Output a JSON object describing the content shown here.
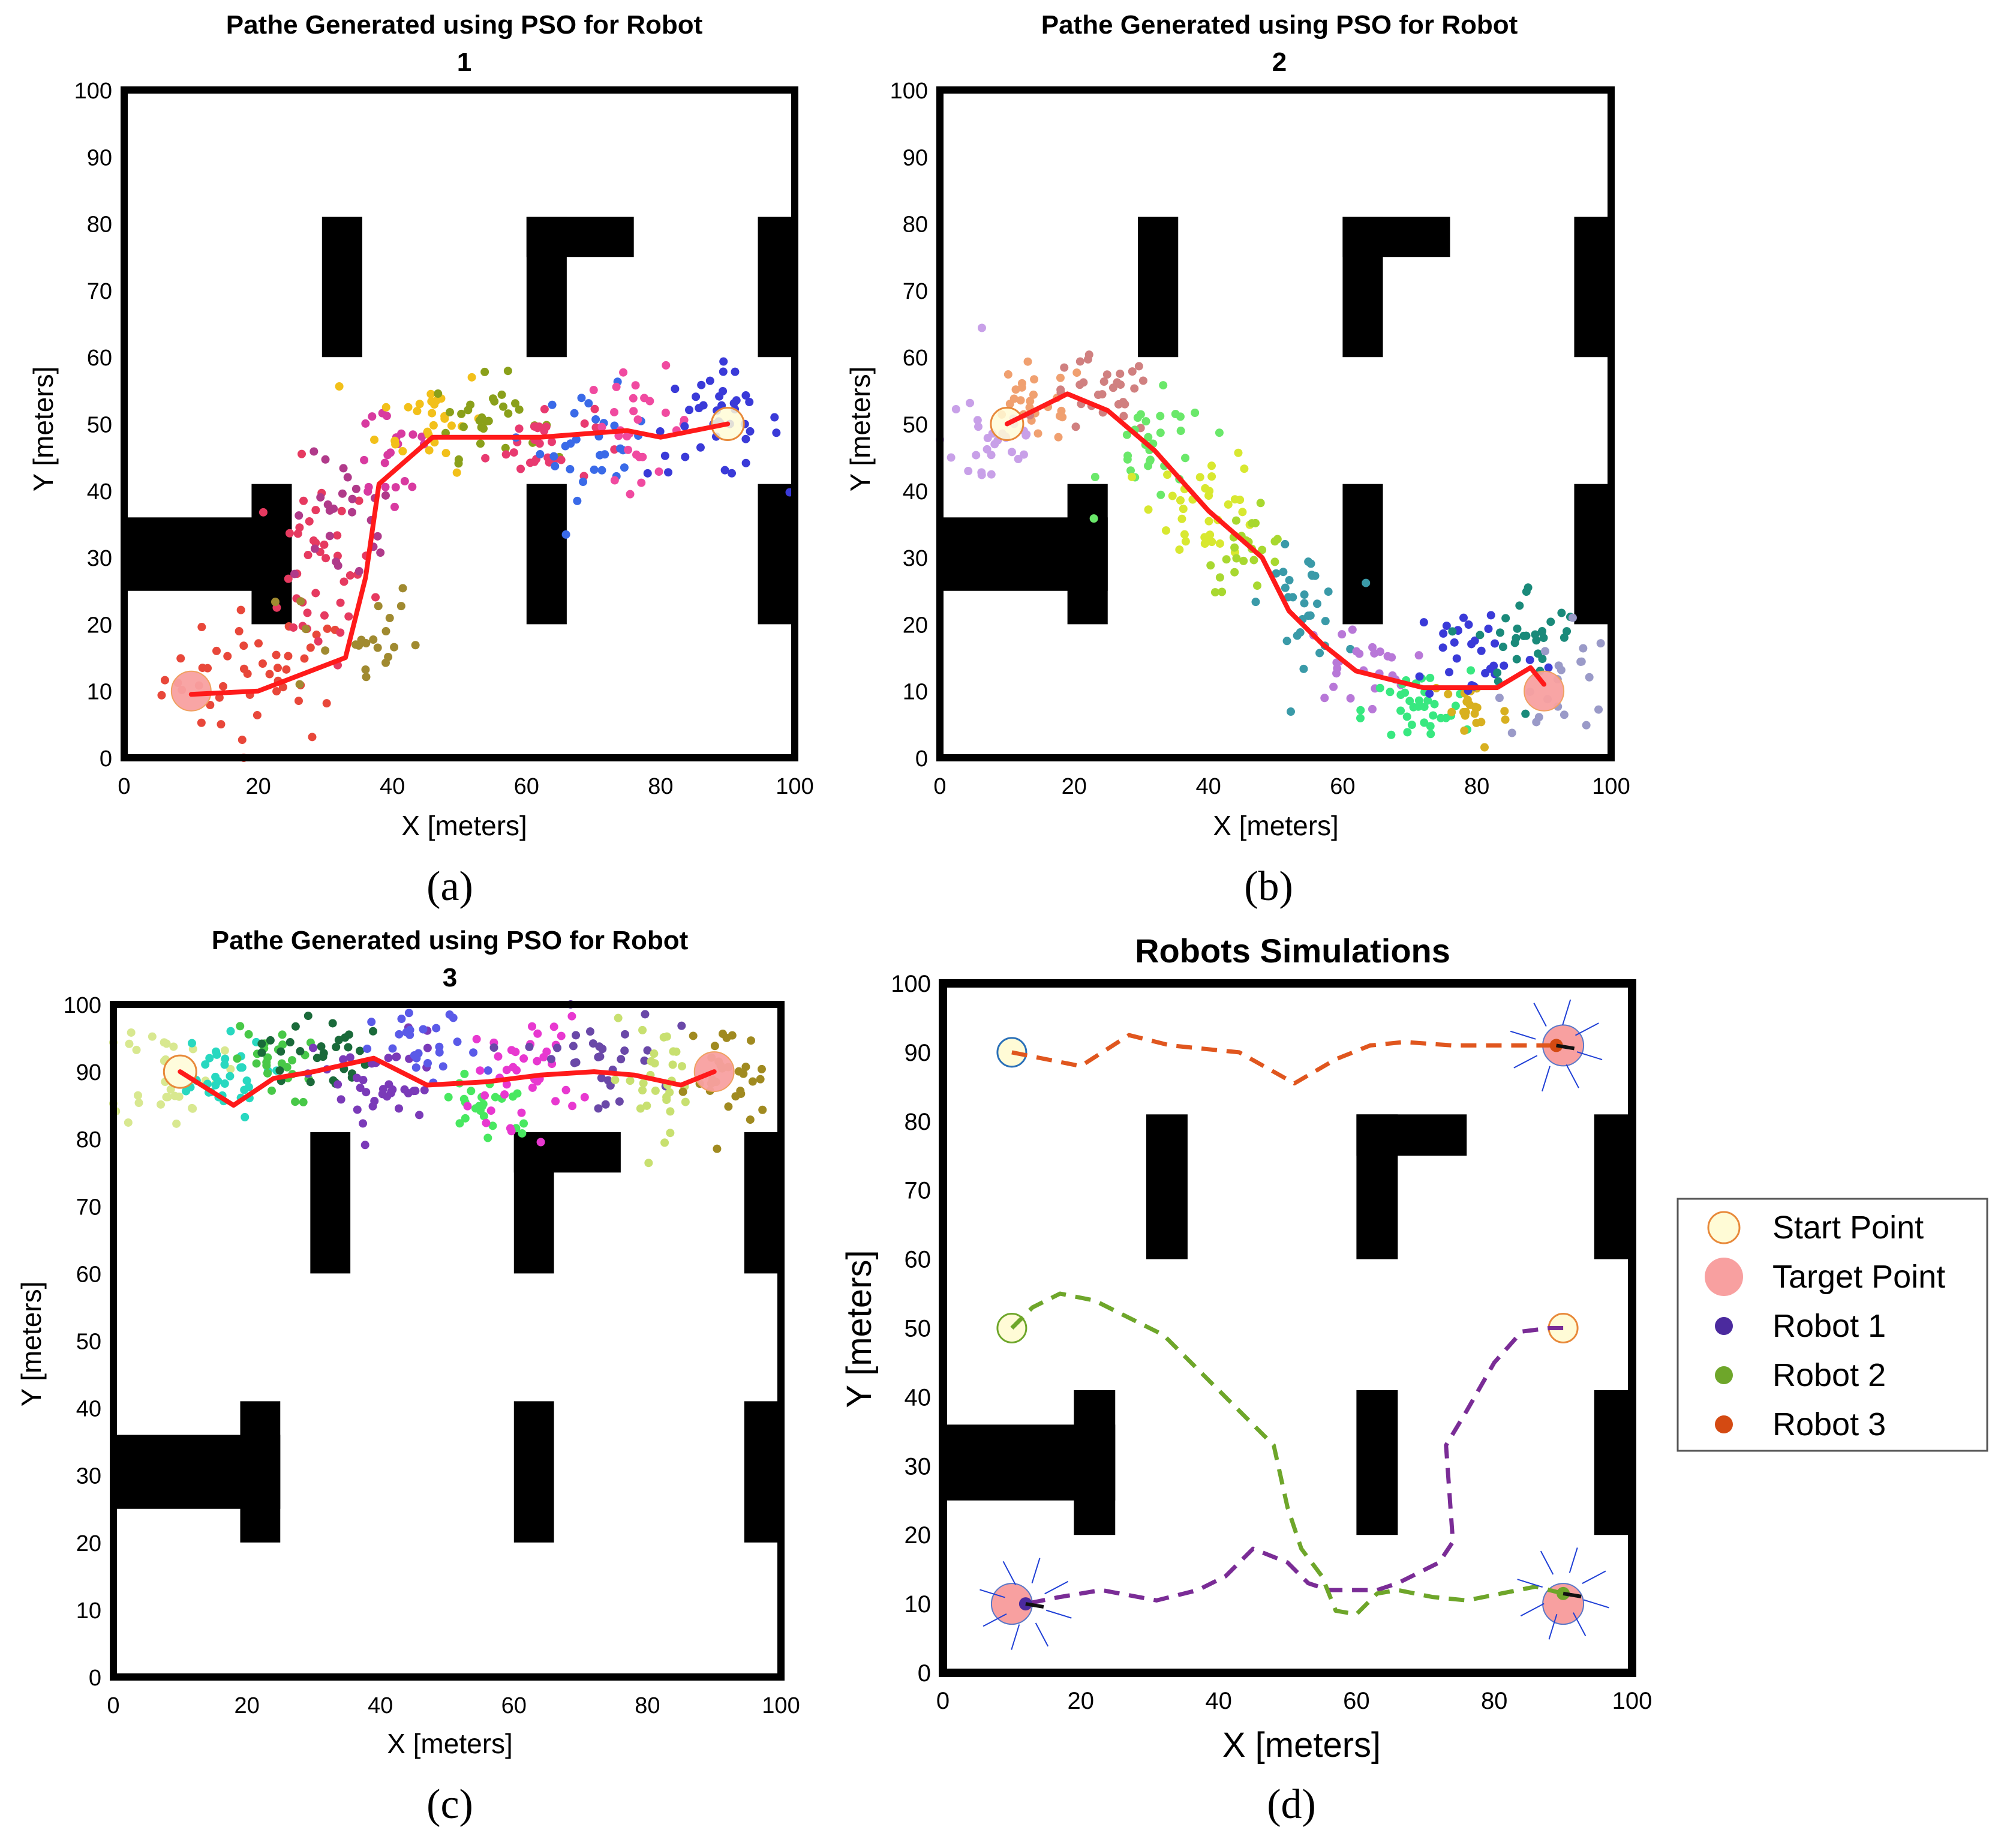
{
  "colors": {
    "path": "#ff1a1a",
    "obstacle": "#000000",
    "start_fill": "#fffbd6",
    "start_edge": "#e8893a",
    "target_fill": "#f8a0a0",
    "robot1": "#7a2c96",
    "robot2": "#6ea62a",
    "robot3": "#e0561e",
    "robot1_marker": "#4b2a9e",
    "robot2_marker": "#6ea62a",
    "robot3_marker": "#d44a12",
    "sensor": "#1f3fd6"
  },
  "chart_data": [
    {
      "id": "a",
      "type": "scatter",
      "title_line1": "Pathe Generated using PSO for Robot",
      "title_line2": "1",
      "xlabel": "X [meters]",
      "ylabel": "Y [meters]",
      "xlim": [
        0,
        100
      ],
      "ylim": [
        0,
        100
      ],
      "xticks": [
        "0",
        "20",
        "40",
        "60",
        "80",
        "100"
      ],
      "yticks": [
        "0",
        "10",
        "20",
        "30",
        "40",
        "50",
        "60",
        "70",
        "80",
        "90",
        "100"
      ],
      "caption": "(a)",
      "start": [
        90,
        50
      ],
      "target": [
        10,
        10
      ],
      "path": [
        [
          10,
          9.5
        ],
        [
          20,
          10
        ],
        [
          33,
          15
        ],
        [
          36,
          27
        ],
        [
          38,
          41
        ],
        [
          46,
          48
        ],
        [
          62,
          48
        ],
        [
          75,
          49
        ],
        [
          80,
          48
        ],
        [
          90,
          50
        ]
      ],
      "particle_clouds": [
        {
          "color": "#e8473a",
          "cx": 20,
          "cy": 12,
          "sx": 7,
          "sy": 5,
          "n": 45
        },
        {
          "color": "#e63a60",
          "cx": 29,
          "cy": 28,
          "sx": 4,
          "sy": 7,
          "n": 40
        },
        {
          "color": "#b03a8a",
          "cx": 33,
          "cy": 35,
          "sx": 4,
          "sy": 5,
          "n": 25
        },
        {
          "color": "#a08a30",
          "cx": 34,
          "cy": 18,
          "sx": 5,
          "sy": 5,
          "n": 22
        },
        {
          "color": "#d83aa0",
          "cx": 40,
          "cy": 46,
          "sx": 4,
          "sy": 5,
          "n": 22
        },
        {
          "color": "#f2c01a",
          "cx": 46,
          "cy": 51,
          "sx": 4,
          "sy": 4,
          "n": 28
        },
        {
          "color": "#8aa01a",
          "cx": 54,
          "cy": 51,
          "sx": 4,
          "sy": 3,
          "n": 30
        },
        {
          "color": "#e83a70",
          "cx": 62,
          "cy": 47,
          "sx": 4,
          "sy": 3,
          "n": 28
        },
        {
          "color": "#3a6ae8",
          "cx": 70,
          "cy": 47,
          "sx": 4,
          "sy": 4,
          "n": 30
        },
        {
          "color": "#f04aa0",
          "cx": 77,
          "cy": 50,
          "sx": 4,
          "sy": 4,
          "n": 28
        },
        {
          "color": "#3a3ad8",
          "cx": 88,
          "cy": 50,
          "sx": 5,
          "sy": 4,
          "n": 40
        }
      ]
    },
    {
      "id": "b",
      "type": "scatter",
      "title_line1": "Pathe Generated using PSO for Robot",
      "title_line2": "2",
      "xlabel": "X [meters]",
      "ylabel": "Y [meters]",
      "xlim": [
        0,
        100
      ],
      "ylim": [
        0,
        100
      ],
      "xticks": [
        "0",
        "20",
        "40",
        "60",
        "80",
        "100"
      ],
      "yticks": [
        "0",
        "10",
        "20",
        "30",
        "40",
        "50",
        "60",
        "70",
        "80",
        "90",
        "100"
      ],
      "caption": "(b)",
      "start": [
        10,
        50
      ],
      "target": [
        90,
        10
      ],
      "path": [
        [
          10,
          50
        ],
        [
          19,
          54.5
        ],
        [
          25,
          52
        ],
        [
          32,
          46
        ],
        [
          40,
          37
        ],
        [
          48,
          30
        ],
        [
          52,
          22
        ],
        [
          57,
          17
        ],
        [
          62,
          13
        ],
        [
          72,
          10.5
        ],
        [
          83,
          10.5
        ],
        [
          88,
          13.5
        ],
        [
          90,
          11
        ]
      ],
      "particle_clouds": [
        {
          "color": "#c8a0e8",
          "cx": 8,
          "cy": 48,
          "sx": 4,
          "sy": 5,
          "n": 30
        },
        {
          "color": "#f0a070",
          "cx": 14,
          "cy": 53,
          "sx": 4,
          "sy": 3,
          "n": 25
        },
        {
          "color": "#d08080",
          "cx": 24,
          "cy": 54,
          "sx": 4,
          "sy": 3,
          "n": 30
        },
        {
          "color": "#6ae86a",
          "cx": 32,
          "cy": 46,
          "sx": 4,
          "sy": 4,
          "n": 30
        },
        {
          "color": "#d8e830",
          "cx": 40,
          "cy": 38,
          "sx": 4,
          "sy": 4,
          "n": 35
        },
        {
          "color": "#a8d830",
          "cx": 46,
          "cy": 31,
          "sx": 3,
          "sy": 3,
          "n": 25
        },
        {
          "color": "#3a9aa8",
          "cx": 54,
          "cy": 23,
          "sx": 3,
          "sy": 4,
          "n": 30
        },
        {
          "color": "#b878d8",
          "cx": 62,
          "cy": 14,
          "sx": 4,
          "sy": 3,
          "n": 25
        },
        {
          "color": "#38e880",
          "cx": 71,
          "cy": 7,
          "sx": 4,
          "sy": 3,
          "n": 35
        },
        {
          "color": "#d8b020",
          "cx": 79,
          "cy": 7,
          "sx": 3,
          "sy": 3,
          "n": 22
        },
        {
          "color": "#3a3ad8",
          "cx": 80,
          "cy": 16,
          "sx": 5,
          "sy": 4,
          "n": 30
        },
        {
          "color": "#1a8a7a",
          "cx": 88,
          "cy": 18,
          "sx": 4,
          "sy": 4,
          "n": 30
        },
        {
          "color": "#9a9ac8",
          "cx": 92,
          "cy": 12,
          "sx": 4,
          "sy": 5,
          "n": 20
        }
      ]
    },
    {
      "id": "c",
      "type": "scatter",
      "title_line1": "Pathe Generated using PSO for Robot",
      "title_line2": "3",
      "xlabel": "X [meters]",
      "ylabel": "Y [meters]",
      "xlim": [
        0,
        100
      ],
      "ylim": [
        0,
        100
      ],
      "xticks": [
        "0",
        "20",
        "40",
        "60",
        "80",
        "100"
      ],
      "yticks": [
        "0",
        "10",
        "20",
        "30",
        "40",
        "50",
        "60",
        "70",
        "80",
        "90",
        "100"
      ],
      "caption": "(c)",
      "start": [
        10,
        90
      ],
      "target": [
        90,
        90
      ],
      "path": [
        [
          10,
          90
        ],
        [
          18,
          85
        ],
        [
          24,
          89
        ],
        [
          30,
          90
        ],
        [
          39,
          92
        ],
        [
          47,
          88
        ],
        [
          56,
          88.5
        ],
        [
          64,
          89.5
        ],
        [
          72,
          90
        ],
        [
          78,
          89.5
        ],
        [
          85,
          88
        ],
        [
          90,
          90
        ]
      ],
      "particle_clouds": [
        {
          "color": "#d8e890",
          "cx": 8,
          "cy": 90,
          "sx": 4,
          "sy": 4,
          "n": 30
        },
        {
          "color": "#28d8c0",
          "cx": 15,
          "cy": 89,
          "sx": 4,
          "sy": 3,
          "n": 35
        },
        {
          "color": "#48c848",
          "cx": 24,
          "cy": 91,
          "sx": 3,
          "sy": 3,
          "n": 25
        },
        {
          "color": "#1a6a3a",
          "cx": 30,
          "cy": 93,
          "sx": 4,
          "sy": 3,
          "n": 30
        },
        {
          "color": "#7a3ab8",
          "cx": 40,
          "cy": 88,
          "sx": 5,
          "sy": 4,
          "n": 40
        },
        {
          "color": "#5a5ae8",
          "cx": 47,
          "cy": 93,
          "sx": 4,
          "sy": 3,
          "n": 25
        },
        {
          "color": "#48e860",
          "cx": 56,
          "cy": 85,
          "sx": 4,
          "sy": 3,
          "n": 25
        },
        {
          "color": "#e838d0",
          "cx": 62,
          "cy": 90,
          "sx": 4,
          "sy": 4,
          "n": 40
        },
        {
          "color": "#6a48a8",
          "cx": 72,
          "cy": 92,
          "sx": 5,
          "sy": 4,
          "n": 30
        },
        {
          "color": "#c8e070",
          "cx": 82,
          "cy": 89,
          "sx": 4,
          "sy": 4,
          "n": 30
        },
        {
          "color": "#a08a20",
          "cx": 92,
          "cy": 89,
          "sx": 3,
          "sy": 4,
          "n": 30
        }
      ]
    },
    {
      "id": "d",
      "type": "line",
      "title": "Robots Simulations",
      "xlabel": "X [meters]",
      "ylabel": "Y [meters]",
      "xlim": [
        0,
        100
      ],
      "ylim": [
        0,
        100
      ],
      "xticks": [
        "0",
        "20",
        "40",
        "60",
        "80",
        "100"
      ],
      "yticks": [
        "0",
        "10",
        "20",
        "30",
        "40",
        "50",
        "60",
        "70",
        "80",
        "90",
        "100"
      ],
      "caption": "(d)",
      "starts": [
        [
          10,
          90
        ],
        [
          10,
          50
        ],
        [
          90,
          50
        ]
      ],
      "targets": [
        [
          90,
          91
        ],
        [
          10,
          10
        ],
        [
          90,
          10
        ]
      ],
      "series": [
        {
          "name": "Robot 1",
          "color_key": "robot1",
          "path": [
            [
              90,
              50
            ],
            [
              88,
              50
            ],
            [
              84,
              49.5
            ],
            [
              80,
              45
            ],
            [
              76,
              38
            ],
            [
              73,
              33
            ],
            [
              73.5,
              26
            ],
            [
              74,
              19
            ],
            [
              72,
              16
            ],
            [
              70,
              15
            ],
            [
              66,
              13
            ],
            [
              63,
              12
            ],
            [
              59,
              12
            ],
            [
              56,
              12
            ],
            [
              53,
              13
            ],
            [
              50,
              16
            ],
            [
              45,
              18
            ],
            [
              41,
              14
            ],
            [
              37,
              12
            ],
            [
              31,
              10.5
            ],
            [
              23,
              12
            ],
            [
              17,
              11
            ],
            [
              12,
              10
            ]
          ]
        },
        {
          "name": "Robot 2",
          "color_key": "robot2",
          "path": [
            [
              10,
              50
            ],
            [
              13,
              53
            ],
            [
              17,
              55
            ],
            [
              22,
              54
            ],
            [
              32,
              49
            ],
            [
              38,
              43
            ],
            [
              43,
              38
            ],
            [
              48,
              33
            ],
            [
              50,
              24
            ],
            [
              52,
              18
            ],
            [
              55,
              14
            ],
            [
              57,
              9
            ],
            [
              60,
              8.5
            ],
            [
              63,
              11.5
            ],
            [
              66,
              12
            ],
            [
              71,
              11
            ],
            [
              76,
              10.5
            ],
            [
              81,
              11.5
            ],
            [
              86,
              12.5
            ],
            [
              90,
              11.5
            ]
          ]
        },
        {
          "name": "Robot 3",
          "color_key": "robot3",
          "path": [
            [
              10,
              90
            ],
            [
              15,
              89
            ],
            [
              20,
              88
            ],
            [
              27,
              92.5
            ],
            [
              33,
              91
            ],
            [
              43,
              90
            ],
            [
              51,
              85.5
            ],
            [
              57,
              89
            ],
            [
              62,
              91
            ],
            [
              67,
              91.5
            ],
            [
              74,
              91
            ],
            [
              80,
              91
            ],
            [
              86,
              91
            ],
            [
              89,
              91
            ]
          ]
        }
      ],
      "legend": {
        "position": "right",
        "items": [
          {
            "label": "Start Point",
            "kind": "start"
          },
          {
            "label": "Target Point",
            "kind": "target"
          },
          {
            "label": "Robot 1",
            "kind": "robot1_marker"
          },
          {
            "label": "Robot 2",
            "kind": "robot2_marker"
          },
          {
            "label": "Robot 3",
            "kind": "robot3_marker"
          }
        ]
      }
    }
  ]
}
